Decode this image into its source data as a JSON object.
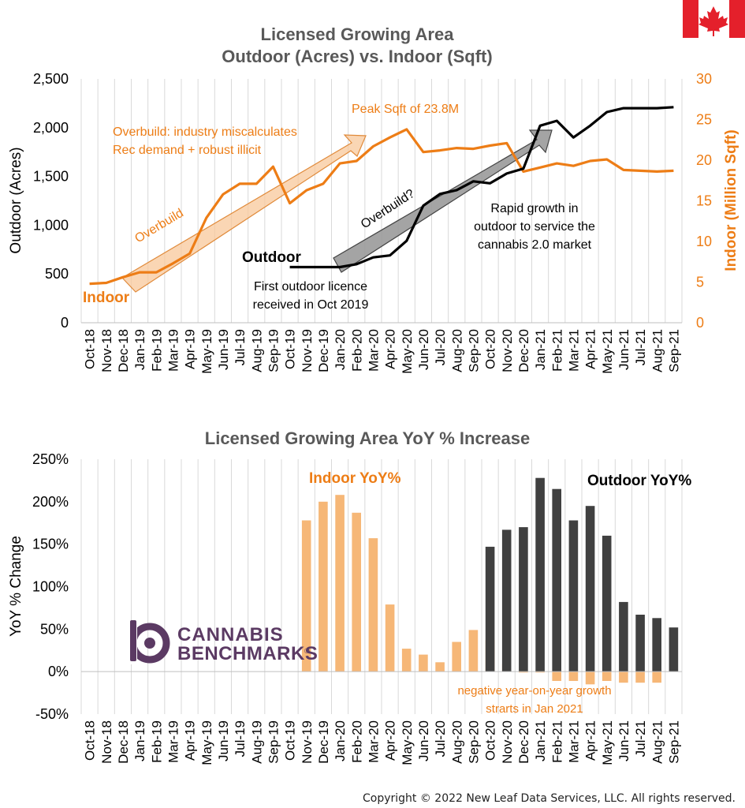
{
  "copyright": "Copyright © 2022 New Leaf Data Services, LLC. All rights reserved.",
  "logo": {
    "line1": "CANNABIS",
    "line2": "BENCHMARKS",
    "mark": "®",
    "icon": "cannabis-benchmarks-logo-icon"
  },
  "flag": {
    "icon": "canada-flag-icon",
    "colors": {
      "red": "#e4202b",
      "white": "#ffffff"
    }
  },
  "colors": {
    "indoor": "#ed7d16",
    "indoor_bar": "#f6b777",
    "outdoor": "#000000",
    "outdoor_bar": "#404040",
    "title": "#595959"
  },
  "chart_data": [
    {
      "type": "line",
      "title": "Licensed Growing Area",
      "subtitle": "Outdoor (Acres) vs. Indoor (Sqft)",
      "categories": [
        "Oct-18",
        "Nov-18",
        "Dec-18",
        "Jan-19",
        "Feb-19",
        "Mar-19",
        "Apr-19",
        "May-19",
        "Jun-19",
        "Jul-19",
        "Aug-19",
        "Sep-19",
        "Oct-19",
        "Nov-19",
        "Dec-19",
        "Jan-20",
        "Feb-20",
        "Mar-20",
        "Apr-20",
        "May-20",
        "Jun-20",
        "Jul-20",
        "Aug-20",
        "Sep-20",
        "Oct-20",
        "Nov-20",
        "Dec-20",
        "Jan-21",
        "Feb-21",
        "Mar-21",
        "Apr-21",
        "May-21",
        "Jun-21",
        "Jul-21",
        "Aug-21",
        "Sep-21"
      ],
      "y_left": {
        "label": "Outdoor (Acres)",
        "lim": [
          0,
          2500
        ],
        "ticks": [
          "0",
          "500",
          "1,000",
          "1,500",
          "2,000",
          "2,500"
        ]
      },
      "y_right": {
        "label": "Indoor (Million Sqft)",
        "lim": [
          0,
          30
        ],
        "ticks": [
          "0",
          "5",
          "10",
          "15",
          "20",
          "25",
          "30"
        ]
      },
      "grid": "vertical",
      "series": [
        {
          "name": "Indoor",
          "axis": "right",
          "values": [
            4.8,
            4.9,
            5.6,
            6.2,
            6.2,
            7.3,
            8.5,
            12.9,
            15.8,
            17.1,
            17.1,
            19.2,
            14.7,
            16.3,
            17.1,
            19.6,
            19.9,
            21.7,
            22.8,
            23.8,
            21.0,
            21.2,
            21.5,
            21.4,
            21.8,
            22.1,
            18.6,
            19.1,
            19.6,
            19.3,
            19.9,
            20.1,
            18.8,
            18.7,
            18.6,
            18.7
          ]
        },
        {
          "name": "Outdoor",
          "axis": "left",
          "values": [
            null,
            null,
            null,
            null,
            null,
            null,
            null,
            null,
            null,
            null,
            null,
            null,
            570,
            570,
            570,
            570,
            600,
            670,
            690,
            840,
            1200,
            1320,
            1360,
            1450,
            1430,
            1530,
            1580,
            2020,
            2070,
            1900,
            2020,
            2160,
            2200,
            2200,
            2200,
            2210
          ]
        }
      ],
      "annotations": {
        "overbuild_1": "Overbuild: industry miscalculates",
        "overbuild_2": "Rec demand + robust illicit",
        "peak": "Peak Sqft of 23.8M",
        "overbuild_small": "Overbuild",
        "overbuild_q": "Overbuild?",
        "rapid_1": "Rapid growth in",
        "rapid_2": "outdoor to service the",
        "rapid_3": "cannabis 2.0 market",
        "first_1": "First outdoor licence",
        "first_2": "received in Oct 2019",
        "outdoor_label": "Outdoor",
        "indoor_label": "Indoor"
      }
    },
    {
      "type": "bar",
      "title": "Licensed Growing Area YoY % Increase",
      "ylabel": "YoY % Change",
      "ylim": [
        -50,
        250
      ],
      "ticks": [
        "-50%",
        "0%",
        "50%",
        "100%",
        "150%",
        "200%",
        "250%"
      ],
      "categories": [
        "Oct-18",
        "Nov-18",
        "Dec-18",
        "Jan-19",
        "Feb-19",
        "Mar-19",
        "Apr-19",
        "May-19",
        "Jun-19",
        "Jul-19",
        "Aug-19",
        "Sep-19",
        "Oct-19",
        "Nov-19",
        "Dec-19",
        "Jan-20",
        "Feb-20",
        "Mar-20",
        "Apr-20",
        "May-20",
        "Jun-20",
        "Jul-20",
        "Aug-20",
        "Sep-20",
        "Oct-20",
        "Nov-20",
        "Dec-20",
        "Jan-21",
        "Feb-21",
        "Mar-21",
        "Apr-21",
        "May-21",
        "Jun-21",
        "Jul-21",
        "Aug-21",
        "Sep-21"
      ],
      "series": [
        {
          "name": "Indoor YoY%",
          "values": [
            null,
            null,
            null,
            null,
            null,
            null,
            null,
            null,
            null,
            null,
            null,
            null,
            null,
            178,
            200,
            208,
            187,
            157,
            79,
            27,
            20,
            11,
            35,
            49,
            37,
            9,
            -1,
            -1,
            -11,
            -11,
            -15,
            -11,
            -13,
            -13,
            -13,
            null
          ]
        },
        {
          "name": "Outdoor YoY%",
          "values": [
            null,
            null,
            null,
            null,
            null,
            null,
            null,
            null,
            null,
            null,
            null,
            null,
            null,
            null,
            null,
            null,
            null,
            null,
            null,
            null,
            null,
            null,
            null,
            null,
            147,
            167,
            170,
            228,
            215,
            178,
            195,
            160,
            82,
            67,
            63,
            52
          ]
        }
      ],
      "annotations": {
        "indoor_label": "Indoor YoY%",
        "outdoor_label": "Outdoor YoY%",
        "neg_1": "negative year-on-year growth",
        "neg_2": "strarts in Jan 2021"
      }
    }
  ]
}
